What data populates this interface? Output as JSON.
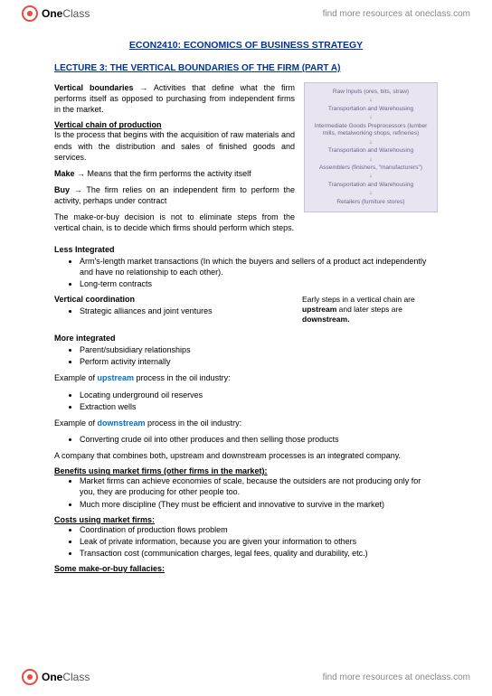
{
  "brand": {
    "one": "One",
    "class": "Class",
    "tagline": "find more resources at oneclass.com"
  },
  "course": "ECON2410: ECONOMICS OF BUSINESS STRATEGY",
  "lecture": "LECTURE 3: THE VERTICAL BOUNDARIES OF THE FIRM (PART A)",
  "vb_term": "Vertical boundaries",
  "vb_def": " → Activities that define what the firm performs itself as opposed to purchasing from independent firms in the market.",
  "vcp_heading": "Vertical chain of production",
  "vcp_body": "Is the process that begins with the acquisition of raw materials and ends with the distribution and sales of finished goods and services.",
  "make_term": "Make",
  "make_def": " → Means that the firm performs the activity itself",
  "buy_term": "Buy",
  "buy_def": " → The firm relies on an independent firm to perform the activity, perhaps under contract",
  "mob": "The make-or-buy decision is not to eliminate steps from the vertical chain, is to decide which firms should perform which steps.",
  "less_int": "Less Integrated",
  "less_items": [
    "Arm's-length market transactions (In which the buyers and sellers of a product act independently and have no relationship to each other).",
    "Long-term contracts"
  ],
  "vcoord": "Vertical coordination",
  "vcoord_items": [
    "Strategic alliances and joint ventures"
  ],
  "sidenote_a": "Early steps in a vertical chain are ",
  "sidenote_b": "upstream",
  "sidenote_c": " and later steps are ",
  "sidenote_d": "downstream.",
  "more_int": "More integrated",
  "more_items": [
    "Parent/subsidiary relationships",
    "Perform activity internally"
  ],
  "ex_up_pre": "Example of ",
  "ex_up_word": "upstream",
  "ex_up_post": " process in the oil industry:",
  "ex_up_items": [
    "Locating underground oil reserves",
    "Extraction wells"
  ],
  "ex_dn_pre": "Example of ",
  "ex_dn_word": "downstream",
  "ex_dn_post": " process in the oil industry:",
  "ex_dn_items": [
    "Converting crude oil into other produces and then selling those products"
  ],
  "integrated": "A company that combines both, upstream and downstream processes is an integrated company.",
  "benefits_h": "Benefits using market firms (other firms in the market):",
  "benefits": [
    "Market firms can achieve economies of scale, because the outsiders are not producing only for you, they are producing for other people too.",
    "Much more discipline (They must be efficient and innovative to survive in the market)"
  ],
  "costs_h": "Costs using market firms:",
  "costs": [
    "Coordination of production flows problem",
    "Leak of private information, because you are given your information to others",
    "Transaction cost (communication charges, legal fees, quality and durability, etc.)"
  ],
  "fallacies_h": "Some make-or-buy fallacies:",
  "flow": {
    "n1": "Raw Inputs\n(ores, bits, straw)",
    "n2": "Transportation and Warehousing",
    "n3": "Intermediate Goods Preprocessors\n(lumber mills, metalworking shops, refineries)",
    "n4": "Transportation and Warehousing",
    "n5": "Assemblers\n(finishers, \"manufacturers\")",
    "n6": "Transportation and Warehousing",
    "n7": "Retailers\n(furniture stores)"
  }
}
